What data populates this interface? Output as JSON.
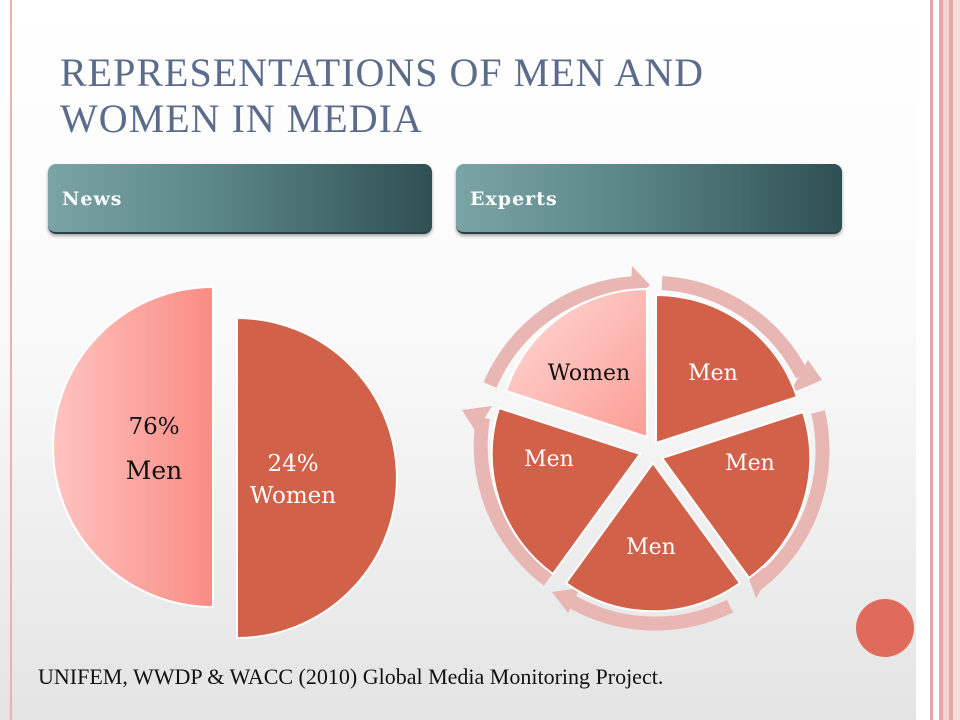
{
  "title": "REPRESENTATIONS OF MEN AND WOMEN IN MEDIA",
  "tabs": {
    "news": "News",
    "experts": "Experts"
  },
  "news_pie": {
    "men": {
      "percent": "76%",
      "label": "Men",
      "color": "#fd9b93"
    },
    "women": {
      "percent": "24%",
      "label": "Women",
      "color": "#d2614a"
    }
  },
  "experts_cycle": {
    "segments": [
      "Men",
      "Men",
      "Men",
      "Men",
      "Women"
    ],
    "men_color": "#d2614a",
    "women_color": "#fdb0ac",
    "arrow_color": "#e8b6b3"
  },
  "source": "UNIFEM, WWDP & WACC (2010) Global  Media Monitoring  Project.",
  "colors": {
    "title": "#5b6b8c",
    "tab": "#4f7a7c",
    "accent": "#e06b5c"
  }
}
